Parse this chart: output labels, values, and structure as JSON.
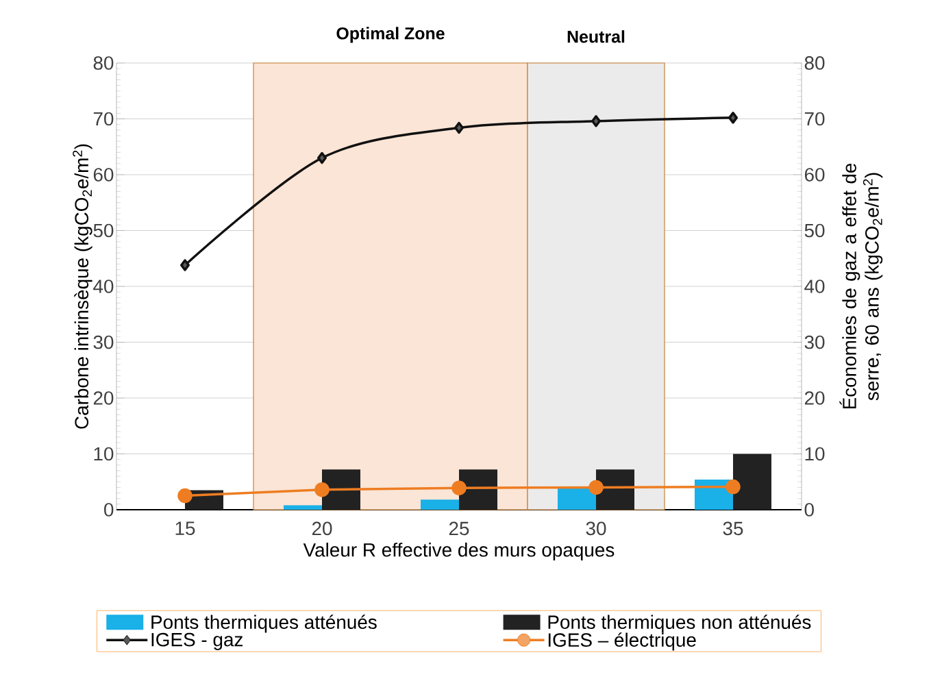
{
  "chart_data": {
    "type": "bar",
    "xlabel": "Valeur R effective des murs opaques",
    "ylabel": "Carbone intrinsèque  (kgCO$_{2}$e/m$^{2}$)",
    "y2label": "Économies de gaz a effet de serre, 60 ans (kgCO$_{2}$e/m$^{2}$)",
    "x": [
      15,
      20,
      25,
      30,
      35
    ],
    "xlim": [
      12.5,
      37.5
    ],
    "xticks": [
      15,
      20,
      25,
      30,
      35
    ],
    "ylim": [
      0,
      80
    ],
    "yticks": [
      0,
      10,
      20,
      30,
      40,
      50,
      60,
      70,
      80
    ],
    "y2lim": [
      0,
      80
    ],
    "y2ticks": [
      0,
      10,
      20,
      30,
      40,
      50,
      60,
      70,
      80
    ],
    "grid": "y",
    "legend": "bottom",
    "series": [
      {
        "name": "Ponts thermiques atténués",
        "color": "#1ab0e8",
        "values": [
          0,
          0.8,
          1.8,
          3.8,
          5.4
        ]
      },
      {
        "name": "Ponts thermiques non atténués",
        "color": "#222222",
        "values": [
          3.5,
          7.2,
          7.2,
          7.2,
          10
        ]
      },
      {
        "name": "IGES - gaz",
        "type": "line",
        "axis": "y2",
        "marker": "diamond",
        "color": "#111111",
        "values": [
          43.8,
          63,
          68.4,
          69.6,
          70.2
        ]
      },
      {
        "name": "IGES – électrique",
        "type": "line",
        "axis": "y2",
        "marker": "circle",
        "color": "#ee7d22",
        "values": [
          2.5,
          3.6,
          3.9,
          4.0,
          4.1
        ]
      }
    ],
    "bands": [
      {
        "axis": "x",
        "from": 17.5,
        "to": 27.5,
        "label": "Optimal Zone",
        "color": "#fbe5d6"
      },
      {
        "axis": "x",
        "from": 27.5,
        "to": 32.5,
        "label": "Neutral",
        "color": "#ebebeb"
      }
    ]
  }
}
